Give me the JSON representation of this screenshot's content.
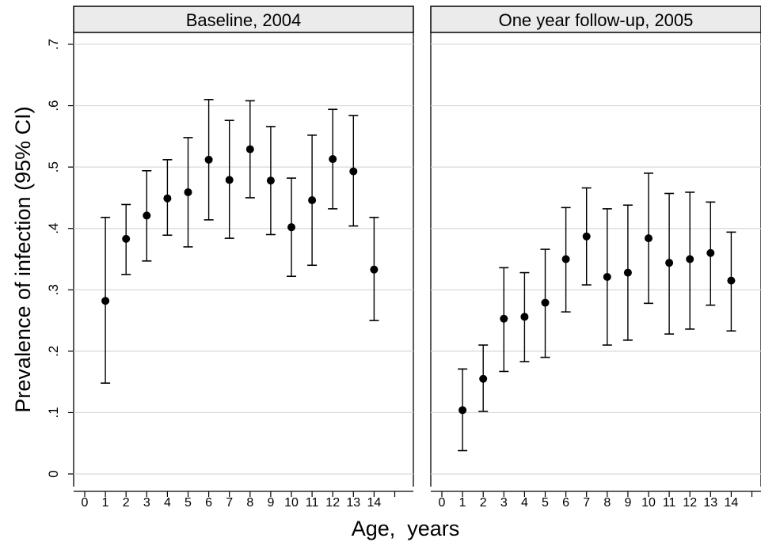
{
  "chart_data": {
    "type": "scatter",
    "ylabel": "Prevalence of infection (95% CI)",
    "xlabel": "Age,  years",
    "ylim": [
      0,
      0.7
    ],
    "xlim": [
      0,
      15
    ],
    "y_ticks": [
      "0",
      ".1",
      ".2",
      ".3",
      ".4",
      ".5",
      ".6",
      ".7"
    ],
    "y_tick_values": [
      0,
      0.1,
      0.2,
      0.3,
      0.4,
      0.5,
      0.6,
      0.7
    ],
    "x_ticks": [
      "0",
      "1",
      "2",
      "3",
      "4",
      "5",
      "6",
      "7",
      "8",
      "9",
      "10",
      "11",
      "12",
      "13",
      "14"
    ],
    "x_tick_values": [
      0,
      1,
      2,
      3,
      4,
      5,
      6,
      7,
      8,
      9,
      10,
      11,
      12,
      13,
      14
    ],
    "grid": true,
    "panels": [
      {
        "title": "Baseline, 2004",
        "x": [
          1,
          2,
          3,
          4,
          5,
          6,
          7,
          8,
          9,
          10,
          11,
          12,
          13,
          14
        ],
        "y": [
          0.282,
          0.383,
          0.421,
          0.449,
          0.459,
          0.512,
          0.479,
          0.529,
          0.478,
          0.402,
          0.446,
          0.513,
          0.493,
          0.333
        ],
        "lower": [
          0.148,
          0.325,
          0.347,
          0.389,
          0.37,
          0.414,
          0.384,
          0.45,
          0.39,
          0.322,
          0.34,
          0.432,
          0.404,
          0.25
        ],
        "upper": [
          0.418,
          0.439,
          0.494,
          0.512,
          0.548,
          0.61,
          0.576,
          0.608,
          0.566,
          0.482,
          0.552,
          0.594,
          0.584,
          0.418
        ]
      },
      {
        "title": "One year follow-up, 2005",
        "x": [
          1,
          2,
          3,
          4,
          5,
          6,
          7,
          8,
          9,
          10,
          11,
          12,
          13,
          14
        ],
        "y": [
          0.104,
          0.155,
          0.253,
          0.256,
          0.279,
          0.35,
          0.387,
          0.321,
          0.328,
          0.384,
          0.344,
          0.35,
          0.36,
          0.315
        ],
        "lower": [
          0.038,
          0.102,
          0.167,
          0.183,
          0.19,
          0.264,
          0.308,
          0.21,
          0.218,
          0.278,
          0.228,
          0.236,
          0.275,
          0.233
        ],
        "upper": [
          0.171,
          0.21,
          0.336,
          0.328,
          0.366,
          0.434,
          0.466,
          0.432,
          0.438,
          0.49,
          0.457,
          0.459,
          0.443,
          0.394
        ]
      }
    ]
  }
}
